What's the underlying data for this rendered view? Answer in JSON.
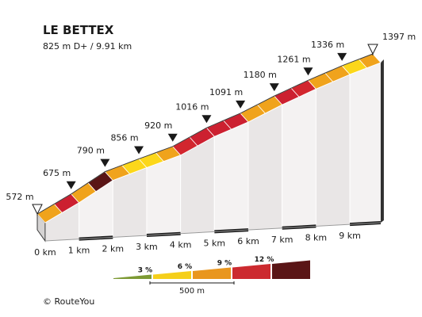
{
  "chart_data": {
    "type": "area",
    "title": "LE BETTEX",
    "subtitle": "825 m D+ / 9.91 km",
    "xlabel": "",
    "ylabel": "",
    "x_unit": "km",
    "y_unit": "m",
    "xlim": [
      0,
      9.91
    ],
    "ylim": [
      572,
      1397
    ],
    "km_ticks": [
      "0 km",
      "1 km",
      "2 km",
      "3 km",
      "4 km",
      "5 km",
      "6 km",
      "7 km",
      "8 km",
      "9 km"
    ],
    "waypoints": [
      {
        "km": 0,
        "elevation": 572,
        "label": "572 m",
        "marker": "start"
      },
      {
        "km": 1,
        "elevation": 675,
        "label": "675 m",
        "marker": "point"
      },
      {
        "km": 2,
        "elevation": 790,
        "label": "790 m",
        "marker": "point"
      },
      {
        "km": 3,
        "elevation": 856,
        "label": "856 m",
        "marker": "point"
      },
      {
        "km": 4,
        "elevation": 920,
        "label": "920 m",
        "marker": "point"
      },
      {
        "km": 5,
        "elevation": 1016,
        "label": "1016 m",
        "marker": "point"
      },
      {
        "km": 6,
        "elevation": 1091,
        "label": "1091 m",
        "marker": "point"
      },
      {
        "km": 7,
        "elevation": 1180,
        "label": "1180 m",
        "marker": "point"
      },
      {
        "km": 8,
        "elevation": 1261,
        "label": "1261 m",
        "marker": "point"
      },
      {
        "km": 9,
        "elevation": 1336,
        "label": "1336 m",
        "marker": "point"
      },
      {
        "km": 9.91,
        "elevation": 1397,
        "label": "1397 m",
        "marker": "end"
      }
    ],
    "segments_grade_pct": [
      {
        "from_km": 0.0,
        "to_km": 0.5,
        "grade": 6
      },
      {
        "from_km": 0.5,
        "to_km": 1.0,
        "grade": 9
      },
      {
        "from_km": 1.0,
        "to_km": 1.5,
        "grade": 7
      },
      {
        "from_km": 1.5,
        "to_km": 2.0,
        "grade": 13
      },
      {
        "from_km": 2.0,
        "to_km": 2.5,
        "grade": 7
      },
      {
        "from_km": 2.5,
        "to_km": 3.0,
        "grade": 5
      },
      {
        "from_km": 3.0,
        "to_km": 3.5,
        "grade": 5
      },
      {
        "from_km": 3.5,
        "to_km": 4.0,
        "grade": 7
      },
      {
        "from_km": 4.0,
        "to_km": 4.5,
        "grade": 10
      },
      {
        "from_km": 4.5,
        "to_km": 5.0,
        "grade": 9
      },
      {
        "from_km": 5.0,
        "to_km": 5.5,
        "grade": 8
      },
      {
        "from_km": 5.5,
        "to_km": 6.0,
        "grade": 9
      },
      {
        "from_km": 6.0,
        "to_km": 6.5,
        "grade": 7
      },
      {
        "from_km": 6.5,
        "to_km": 7.0,
        "grade": 6
      },
      {
        "from_km": 7.0,
        "to_km": 7.5,
        "grade": 8
      },
      {
        "from_km": 7.5,
        "to_km": 8.0,
        "grade": 10
      },
      {
        "from_km": 8.0,
        "to_km": 8.5,
        "grade": 7
      },
      {
        "from_km": 8.5,
        "to_km": 9.0,
        "grade": 7
      },
      {
        "from_km": 9.0,
        "to_km": 9.5,
        "grade": 5
      },
      {
        "from_km": 9.5,
        "to_km": 9.91,
        "grade": 7
      }
    ],
    "legend": {
      "placement": "bottom",
      "entries": [
        {
          "label": "3 %",
          "color": "#7d9a34"
        },
        {
          "label": "6 %",
          "color": "#f5cf1a"
        },
        {
          "label": "9 %",
          "color": "#e9961e"
        },
        {
          "label": "12 %",
          "color": "#cc2a2f"
        },
        {
          "label": "",
          "color": "#5a1516"
        }
      ],
      "scale_label": "500 m"
    }
  },
  "grade_colors": {
    "g0_4": "#7d9a34",
    "g4_6": "#fcd71a",
    "g6_8": "#f0a31c",
    "g8_10": "#cc2030",
    "g10_12": "#d2262e",
    "g12_plus": "#5a1516",
    "wall": "#e9e6e6",
    "wall_alt": "#f4f2f2",
    "outline": "#3a3a3a"
  },
  "footer": {
    "credit": "© RouteYou"
  }
}
